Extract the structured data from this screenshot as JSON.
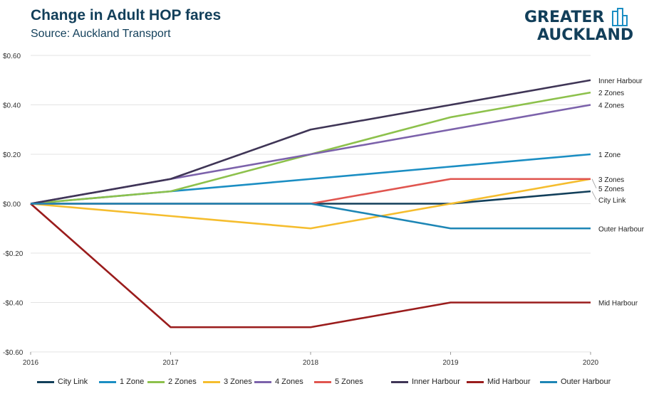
{
  "header": {
    "title": "Change in Adult HOP fares",
    "subtitle": "Source: Auckland Transport"
  },
  "logo": {
    "line1": "GREATER",
    "line2": "AUCKLAND",
    "icon": "building-icon"
  },
  "chart_data": {
    "type": "line",
    "title": "Change in Adult HOP fares",
    "subtitle": "Source: Auckland Transport",
    "x": [
      "2016",
      "2017",
      "2018",
      "2019",
      "2020"
    ],
    "yticks": [
      "$0.60",
      "$0.40",
      "$0.20",
      "$0.00",
      "-$0.20",
      "-$0.40",
      "-$0.60"
    ],
    "ytick_values": [
      0.6,
      0.4,
      0.2,
      0.0,
      -0.2,
      -0.4,
      -0.6
    ],
    "ylim": [
      -0.6,
      0.6
    ],
    "grid": "horizontal",
    "legend": "bottom",
    "series": [
      {
        "name": "City Link",
        "label": "City Link",
        "color": "#123f5a",
        "values": [
          0,
          0,
          0,
          0,
          0.05
        ]
      },
      {
        "name": "1 Zone",
        "label": "1 Zone",
        "color": "#1b8ec3",
        "values": [
          0,
          0.05,
          0.1,
          0.15,
          0.2
        ]
      },
      {
        "name": "2 Zones",
        "label": "2 Zones",
        "color": "#8dc14c",
        "values": [
          0,
          0.05,
          0.2,
          0.35,
          0.45
        ]
      },
      {
        "name": "3 Zones",
        "label": "3 Zones",
        "color": "#f5bd2e",
        "values": [
          0,
          -0.05,
          -0.1,
          0,
          0.1
        ]
      },
      {
        "name": "4 Zones",
        "label": "4 Zones",
        "color": "#7c62ab",
        "values": [
          0,
          0.1,
          0.2,
          0.3,
          0.4
        ]
      },
      {
        "name": "5 Zones",
        "label": "5 Zones",
        "color": "#e0554f",
        "values": [
          0,
          0,
          0,
          0.1,
          0.1
        ]
      },
      {
        "name": "Inner Harbour",
        "label": "Inner Harbour",
        "color": "#3f3556",
        "values": [
          0,
          0.1,
          0.3,
          0.4,
          0.5
        ]
      },
      {
        "name": "Mid Harbour",
        "label": "Mid Harbour",
        "color": "#9a1c1c",
        "values": [
          0,
          -0.5,
          -0.5,
          -0.4,
          -0.4
        ]
      },
      {
        "name": "Outer Harbour",
        "label": "Outer Harbour",
        "color": "#1d86b5",
        "values": [
          0,
          0,
          0,
          -0.1,
          -0.1
        ]
      }
    ]
  }
}
